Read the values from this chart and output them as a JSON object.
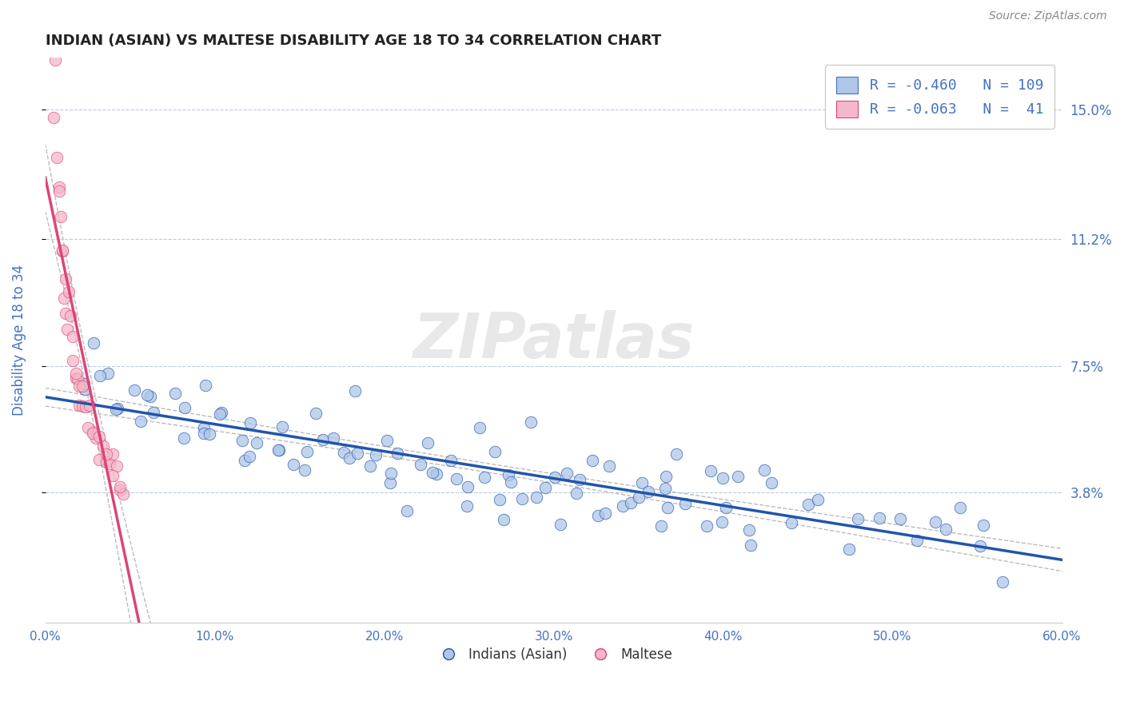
{
  "title": "INDIAN (ASIAN) VS MALTESE DISABILITY AGE 18 TO 34 CORRELATION CHART",
  "source": "Source: ZipAtlas.com",
  "ylabel": "Disability Age 18 to 34",
  "xlim": [
    0.0,
    0.6
  ],
  "ylim": [
    0.0,
    0.165
  ],
  "yticks": [
    0.038,
    0.075,
    0.112,
    0.15
  ],
  "ytick_labels": [
    "3.8%",
    "7.5%",
    "11.2%",
    "15.0%"
  ],
  "xticks": [
    0.0,
    0.1,
    0.2,
    0.3,
    0.4,
    0.5,
    0.6
  ],
  "xtick_labels": [
    "0.0%",
    "10.0%",
    "20.0%",
    "30.0%",
    "40.0%",
    "50.0%",
    "60.0%"
  ],
  "legend_labels": [
    "Indians (Asian)",
    "Maltese"
  ],
  "legend_R": [
    -0.46,
    -0.063
  ],
  "legend_N": [
    109,
    41
  ],
  "blue_color": "#aec6e8",
  "pink_color": "#f4b8c8",
  "blue_line_color": "#2255aa",
  "pink_line_color": "#dd4477",
  "axis_color": "#4472c4",
  "grid_color": "#b8cce4",
  "background_color": "#ffffff",
  "watermark": "ZIPatlas",
  "blue_scatter_x": [
    0.022,
    0.028,
    0.033,
    0.038,
    0.042,
    0.048,
    0.052,
    0.058,
    0.062,
    0.068,
    0.072,
    0.078,
    0.082,
    0.088,
    0.092,
    0.098,
    0.102,
    0.108,
    0.112,
    0.118,
    0.122,
    0.128,
    0.132,
    0.138,
    0.142,
    0.148,
    0.152,
    0.158,
    0.162,
    0.168,
    0.172,
    0.178,
    0.182,
    0.188,
    0.192,
    0.198,
    0.202,
    0.208,
    0.212,
    0.218,
    0.222,
    0.228,
    0.232,
    0.238,
    0.242,
    0.248,
    0.252,
    0.258,
    0.262,
    0.268,
    0.272,
    0.278,
    0.282,
    0.288,
    0.292,
    0.298,
    0.302,
    0.308,
    0.312,
    0.318,
    0.322,
    0.328,
    0.332,
    0.338,
    0.342,
    0.348,
    0.352,
    0.358,
    0.362,
    0.368,
    0.372,
    0.378,
    0.382,
    0.388,
    0.392,
    0.398,
    0.402,
    0.408,
    0.412,
    0.418,
    0.422,
    0.432,
    0.442,
    0.452,
    0.462,
    0.472,
    0.482,
    0.492,
    0.502,
    0.512,
    0.522,
    0.532,
    0.542,
    0.552,
    0.562,
    0.572,
    0.035,
    0.065,
    0.095,
    0.125,
    0.155,
    0.185,
    0.215,
    0.245,
    0.275,
    0.305,
    0.335,
    0.365,
    0.395
  ],
  "blue_scatter_y": [
    0.075,
    0.068,
    0.072,
    0.065,
    0.078,
    0.062,
    0.07,
    0.058,
    0.066,
    0.055,
    0.068,
    0.058,
    0.062,
    0.056,
    0.064,
    0.052,
    0.06,
    0.055,
    0.058,
    0.05,
    0.062,
    0.054,
    0.056,
    0.048,
    0.058,
    0.052,
    0.054,
    0.06,
    0.05,
    0.046,
    0.056,
    0.048,
    0.052,
    0.058,
    0.048,
    0.044,
    0.055,
    0.046,
    0.05,
    0.042,
    0.052,
    0.044,
    0.048,
    0.054,
    0.044,
    0.04,
    0.05,
    0.042,
    0.046,
    0.038,
    0.048,
    0.04,
    0.044,
    0.05,
    0.04,
    0.036,
    0.046,
    0.038,
    0.042,
    0.048,
    0.038,
    0.034,
    0.044,
    0.036,
    0.04,
    0.046,
    0.036,
    0.032,
    0.042,
    0.034,
    0.038,
    0.044,
    0.034,
    0.03,
    0.04,
    0.032,
    0.036,
    0.042,
    0.032,
    0.028,
    0.038,
    0.034,
    0.03,
    0.036,
    0.03,
    0.026,
    0.034,
    0.028,
    0.032,
    0.024,
    0.03,
    0.026,
    0.028,
    0.022,
    0.026,
    0.02,
    0.082,
    0.07,
    0.06,
    0.052,
    0.046,
    0.042,
    0.038,
    0.034,
    0.032,
    0.03,
    0.028,
    0.026,
    0.024
  ],
  "pink_scatter_x": [
    0.005,
    0.007,
    0.008,
    0.009,
    0.01,
    0.011,
    0.012,
    0.013,
    0.015,
    0.016,
    0.018,
    0.019,
    0.02,
    0.022,
    0.024,
    0.026,
    0.028,
    0.03,
    0.032,
    0.034,
    0.036,
    0.038,
    0.04,
    0.042,
    0.044,
    0.046,
    0.006,
    0.008,
    0.01,
    0.012,
    0.014,
    0.016,
    0.018,
    0.02,
    0.022,
    0.025,
    0.028,
    0.032,
    0.036,
    0.04,
    0.044
  ],
  "pink_scatter_y": [
    0.148,
    0.138,
    0.128,
    0.118,
    0.108,
    0.098,
    0.09,
    0.085,
    0.082,
    0.078,
    0.074,
    0.072,
    0.068,
    0.065,
    0.062,
    0.06,
    0.058,
    0.056,
    0.054,
    0.052,
    0.05,
    0.048,
    0.052,
    0.046,
    0.044,
    0.042,
    0.158,
    0.13,
    0.112,
    0.095,
    0.088,
    0.08,
    0.074,
    0.068,
    0.064,
    0.06,
    0.056,
    0.052,
    0.048,
    0.044,
    0.04
  ]
}
